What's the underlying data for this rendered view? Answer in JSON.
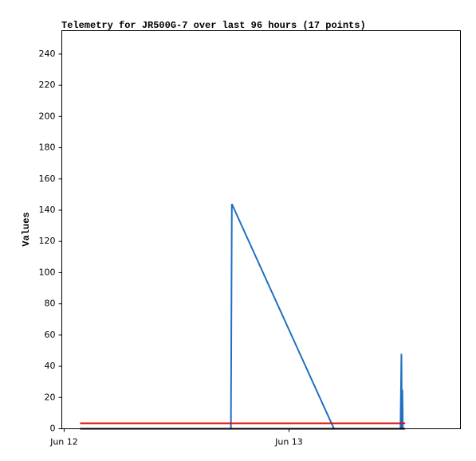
{
  "chart_data": {
    "type": "line",
    "title": "Telemetry for JR500G-7 over last 96 hours (17 points)",
    "y_label": "Values",
    "x": [
      1.7,
      6,
      10,
      17.8,
      17.9,
      28.8,
      32,
      35.9,
      36.0,
      36.05,
      36.1,
      36.15,
      36.2,
      36.25,
      36.3,
      36.35,
      36.4
    ],
    "series": [
      {
        "color": "#1f6fbf",
        "x": [
          1.7,
          6,
          10,
          17.8,
          17.9,
          28.8,
          32,
          35.9,
          36.0,
          36.05,
          36.1,
          36.15,
          36.2,
          36.25,
          36.3,
          36.35,
          36.4
        ],
        "values": [
          0,
          0,
          0,
          0,
          144,
          0,
          0,
          0,
          48,
          0,
          25,
          0,
          0,
          0,
          0,
          0,
          0
        ]
      },
      {
        "color": "#e00000",
        "x": [
          1.7,
          36.4
        ],
        "values": [
          3.5,
          3.5
        ]
      },
      {
        "color": "#000000",
        "x": [
          1.7,
          36.4
        ],
        "values": [
          0,
          0
        ]
      }
    ],
    "xlim": [
      -0.25,
      42.3
    ],
    "xticks": [
      {
        "value": 0,
        "label": "Jun 12"
      },
      {
        "value": 24,
        "label": "Jun 13"
      }
    ],
    "ylim": [
      0,
      255
    ],
    "yticks": [
      0,
      20,
      40,
      60,
      80,
      100,
      120,
      140,
      160,
      180,
      200,
      220,
      240
    ],
    "grid": false
  }
}
